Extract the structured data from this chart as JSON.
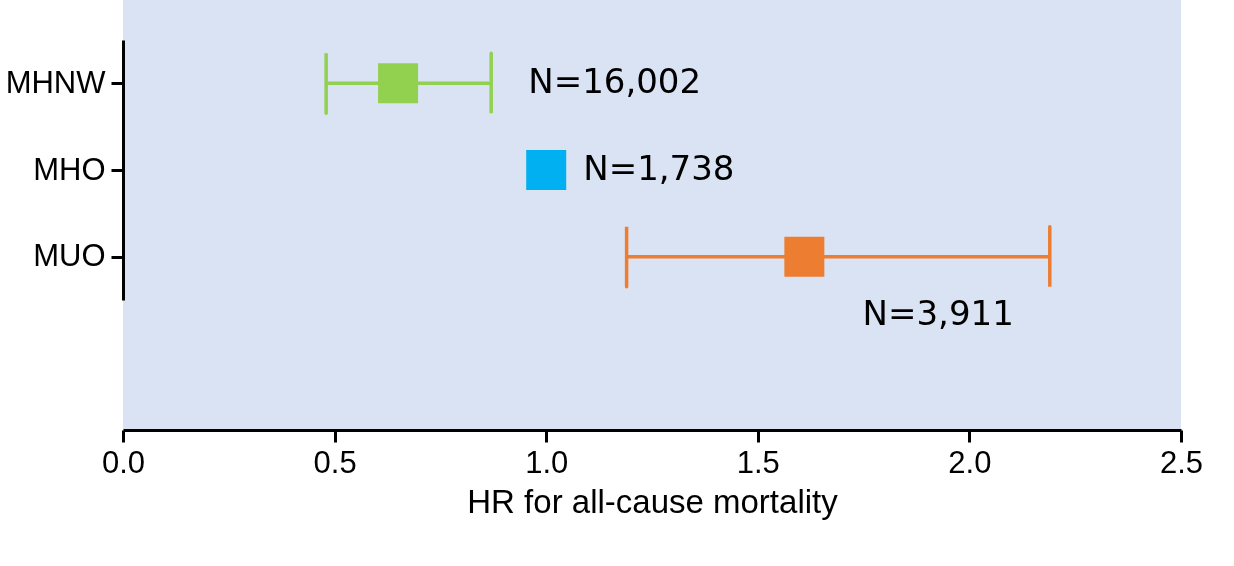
{
  "chart_data": {
    "type": "scatter",
    "orientation": "horizontal",
    "xlabel": "HR for all-cause mortality",
    "categories": [
      "MHNW",
      "MHO",
      "MUO"
    ],
    "values": [
      0.65,
      1.0,
      1.61
    ],
    "errors": [
      [
        0.48,
        0.87
      ],
      null,
      [
        1.19,
        2.19
      ]
    ],
    "colors": [
      "#92d050",
      "#00b0f0",
      "#ed7d31"
    ],
    "marker": "square",
    "xlim": [
      0,
      2.5
    ],
    "xticks": [
      {
        "value": 0,
        "label": "0.0"
      },
      {
        "value": 0.5,
        "label": "0.5"
      },
      {
        "value": 1,
        "label": "1.0"
      },
      {
        "value": 1.5,
        "label": "1.5"
      },
      {
        "value": 2,
        "label": "2.0"
      },
      {
        "value": 2.5,
        "label": "2.5"
      }
    ],
    "annotations": [
      "N=16,002",
      "N=1,738",
      "N=3,911"
    ]
  }
}
